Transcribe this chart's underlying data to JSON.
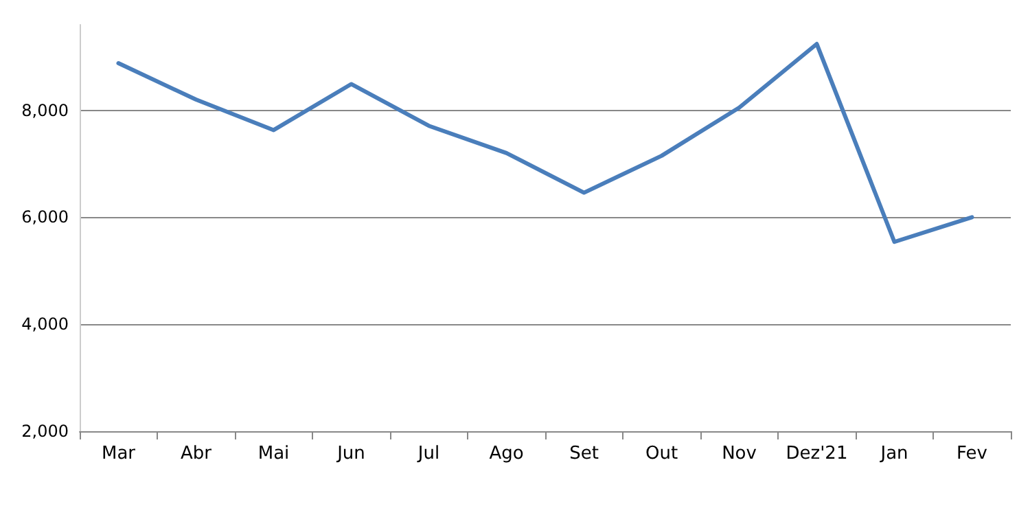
{
  "chart_data": {
    "type": "line",
    "categories": [
      "Mar",
      "Abr",
      "Mai",
      "Jun",
      "Jul",
      "Ago",
      "Set",
      "Out",
      "Nov",
      "Dez'21",
      "Jan",
      "Fev"
    ],
    "series": [
      {
        "color": "#4a7ebb",
        "values": [
          8880,
          8200,
          7630,
          8490,
          7710,
          7200,
          6460,
          7150,
          8050,
          9240,
          5540,
          6000
        ]
      }
    ],
    "ylim": [
      2000,
      9600
    ],
    "yticks": [
      {
        "value": 2000,
        "label": "2,000"
      },
      {
        "value": 4000,
        "label": "4,000"
      },
      {
        "value": 6000,
        "label": "6,000"
      },
      {
        "value": 8000,
        "label": "8,000"
      }
    ],
    "grid": "y",
    "marker": "none",
    "line_style": "solid"
  }
}
